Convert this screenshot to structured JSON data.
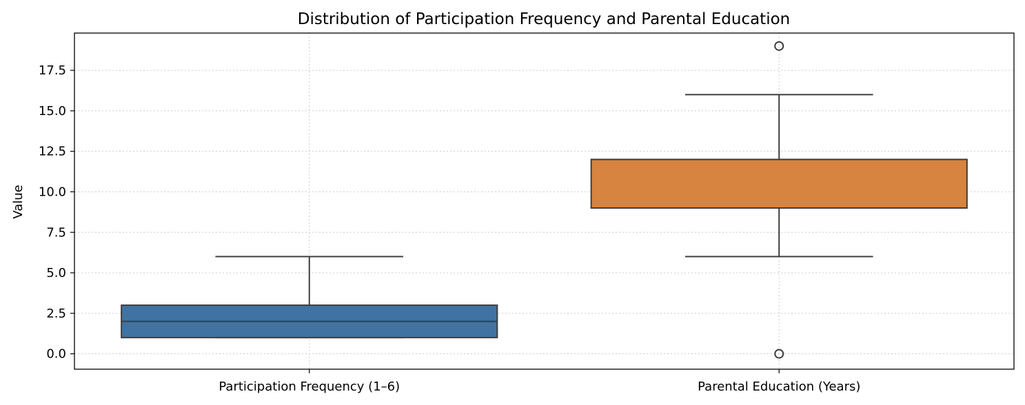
{
  "chart_data": {
    "type": "box",
    "title": "Distribution of Participation Frequency and Parental Education",
    "xlabel": "",
    "ylabel": "Value",
    "ylim": [
      -0.95,
      19.8
    ],
    "yticks": [
      "0.0",
      "2.5",
      "5.0",
      "7.5",
      "10.0",
      "12.5",
      "15.0",
      "17.5"
    ],
    "ytick_values": [
      0,
      2.5,
      5,
      7.5,
      10,
      12.5,
      15,
      17.5
    ],
    "grid": true,
    "categories": [
      "Participation Frequency (1–6)",
      "Parental Education (Years)"
    ],
    "boxes": [
      {
        "label": "Participation Frequency (1–6)",
        "color": "#3f73a3",
        "whisker_low": 1,
        "q1": 1,
        "median": 2,
        "q3": 3,
        "whisker_high": 6,
        "fliers": []
      },
      {
        "label": "Parental Education (Years)",
        "color": "#d68440",
        "whisker_low": 6,
        "q1": 9,
        "median": 12,
        "q3": 12,
        "whisker_high": 16,
        "fliers": [
          0,
          19
        ]
      }
    ]
  }
}
